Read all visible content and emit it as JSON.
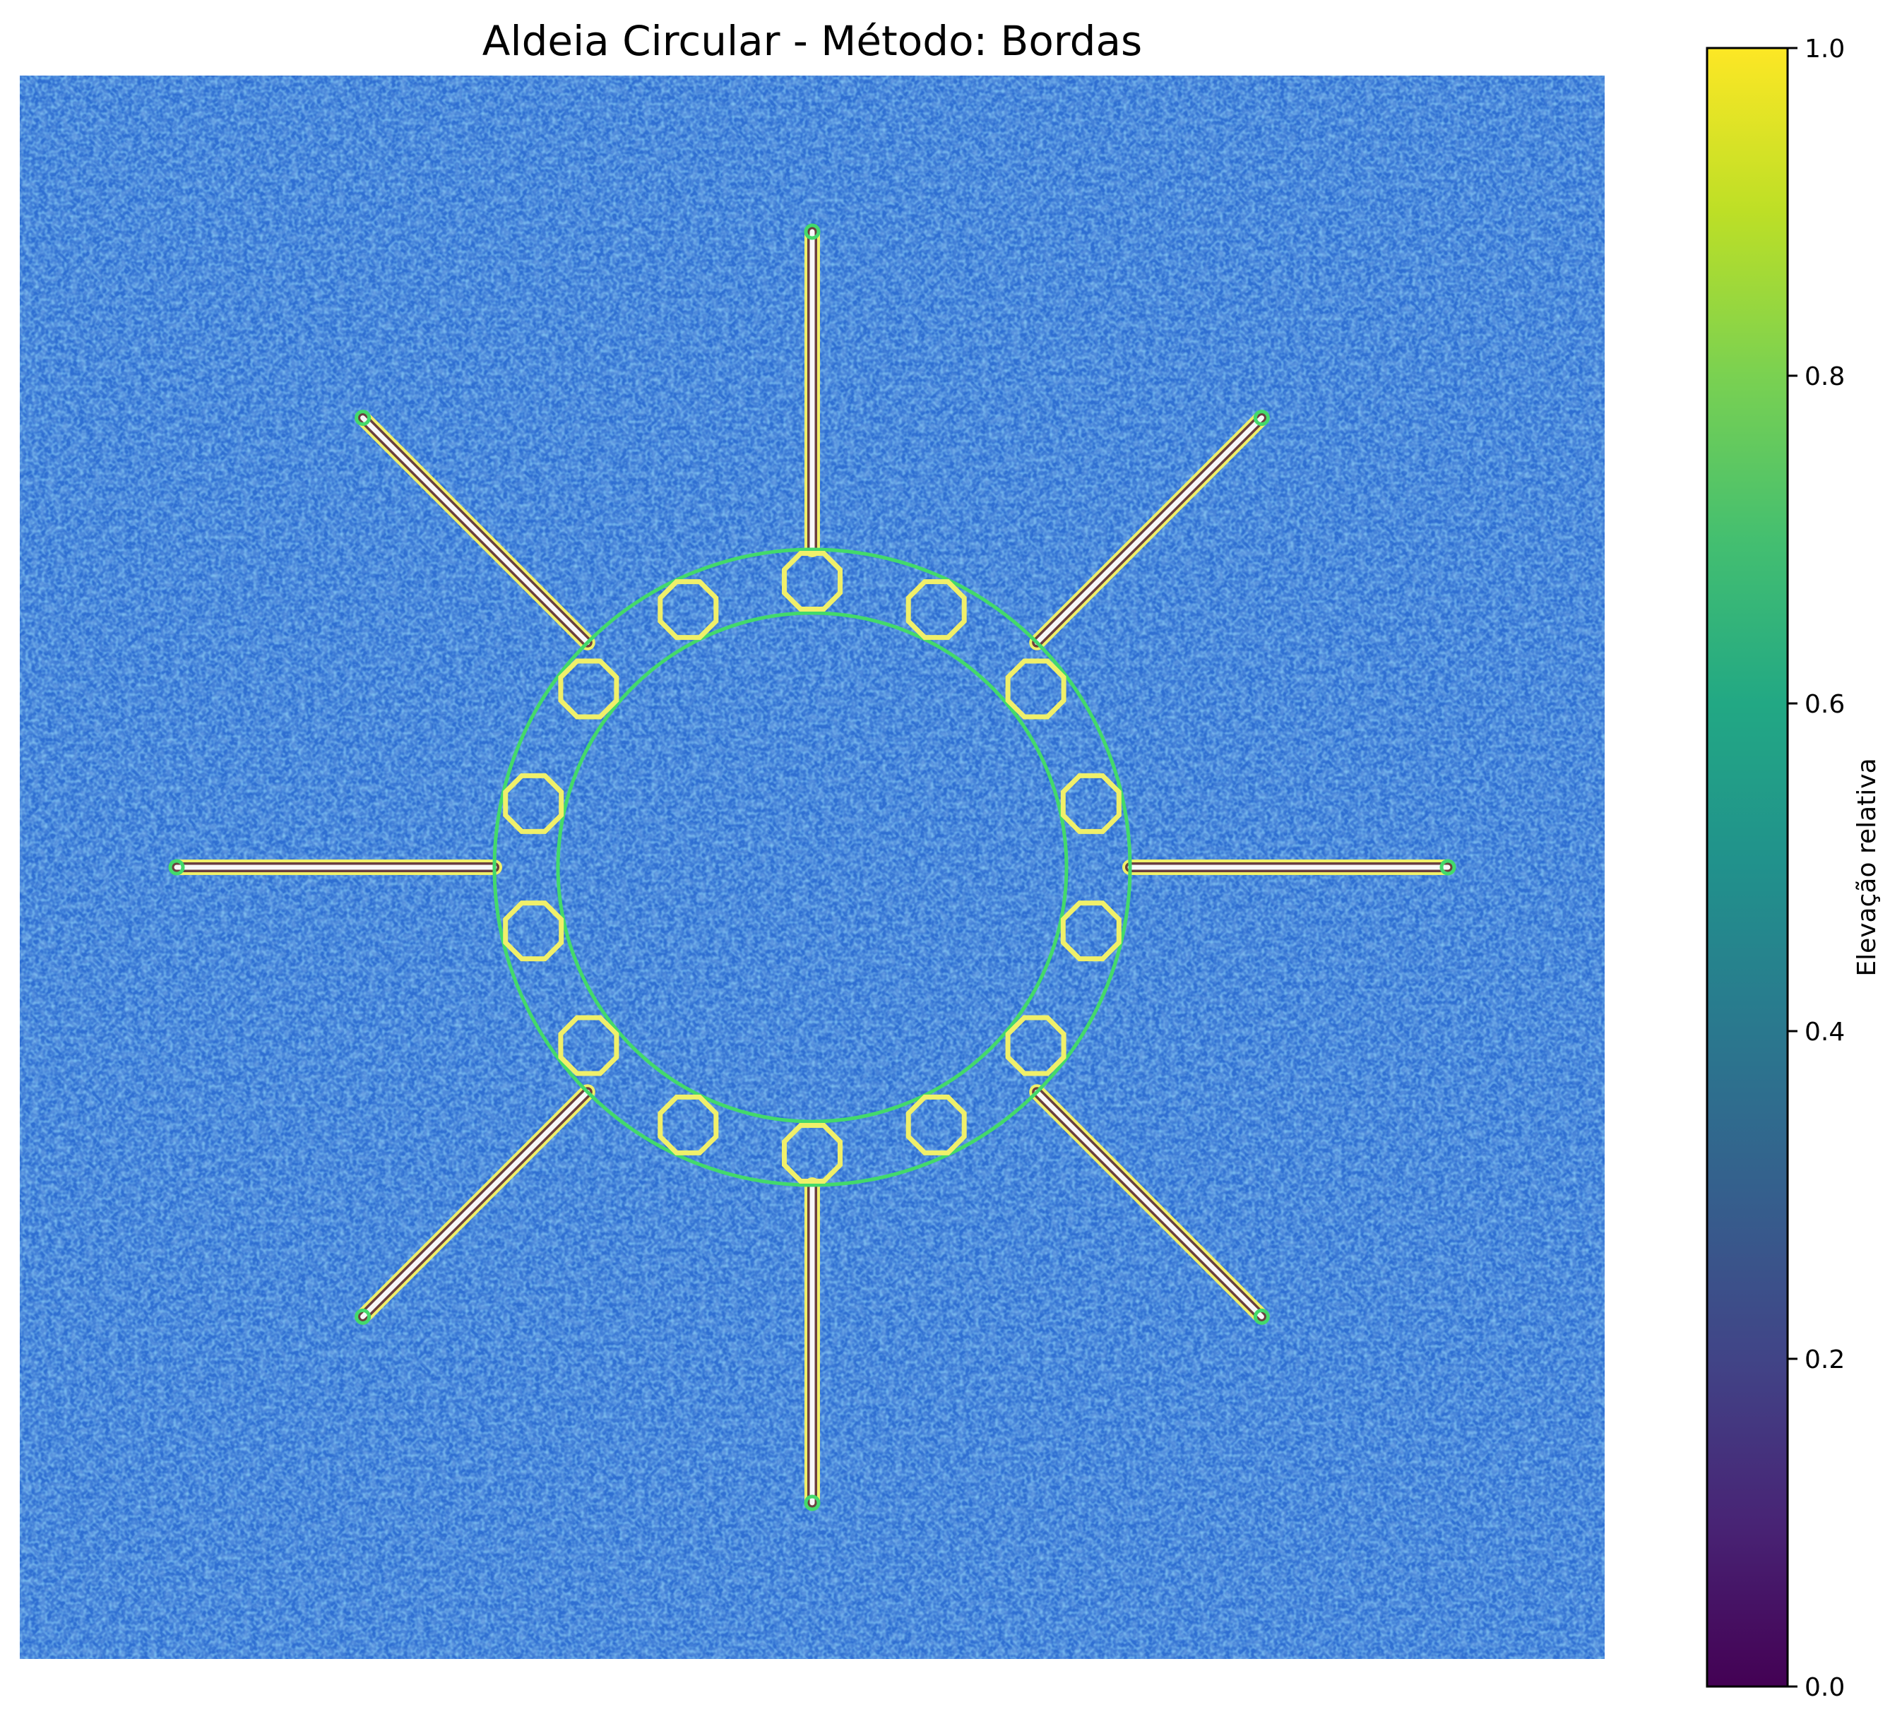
{
  "title": "Aldeia Circular - Método: Bordas",
  "chart_data": {
    "type": "heatmap",
    "title": "Aldeia Circular - Método: Bordas",
    "xlabel": "",
    "ylabel": "",
    "axes": "off",
    "colormap": "viridis",
    "background_colors": [
      "#2a63c4",
      "#2f79d9",
      "#3c95e6"
    ],
    "ring_color": "#43d96b",
    "road_colors": [
      "#f0f06a",
      "#f8f8f8",
      "#6a3f3f"
    ],
    "colorbar": {
      "label": "Elevação relativa",
      "range": [
        0.0,
        1.0
      ],
      "ticks": [
        0.0,
        0.2,
        0.4,
        0.6,
        0.8,
        1.0
      ],
      "tick_labels": [
        "0.0",
        "0.2",
        "0.4",
        "0.6",
        "0.8",
        "1.0"
      ]
    },
    "features": {
      "center": [
        0,
        0
      ],
      "inner_ring_radius": 0.32,
      "outer_ring_radius": 0.4,
      "houses": 14,
      "house_radius": 0.038,
      "house_ring_radius": 0.36,
      "roads": 8,
      "road_angles_deg": [
        0,
        45,
        90,
        135,
        180,
        225,
        270,
        315
      ],
      "road_length_axial": 0.8,
      "road_length_diagonal": 0.8
    }
  }
}
